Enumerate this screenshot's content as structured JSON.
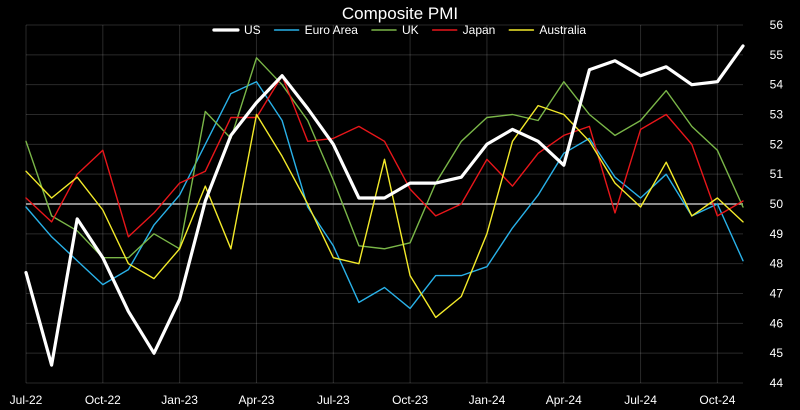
{
  "chart_data": {
    "type": "line",
    "title": "Composite PMI",
    "xlabel": "",
    "ylabel": "",
    "ylim": [
      44,
      56
    ],
    "yticks": [
      44,
      45,
      46,
      47,
      48,
      49,
      50,
      51,
      52,
      53,
      54,
      55,
      56
    ],
    "x_tick_labels": [
      {
        "label": "Jul-22",
        "index": 0
      },
      {
        "label": "Oct-22",
        "index": 3
      },
      {
        "label": "Jan-23",
        "index": 6
      },
      {
        "label": "Apr-23",
        "index": 9
      },
      {
        "label": "Jul-23",
        "index": 12
      },
      {
        "label": "Oct-23",
        "index": 15
      },
      {
        "label": "Jan-24",
        "index": 18
      },
      {
        "label": "Apr-24",
        "index": 21
      },
      {
        "label": "Jul-24",
        "index": 24
      },
      {
        "label": "Oct-24",
        "index": 27
      }
    ],
    "categories": [
      "Jul-22",
      "Aug-22",
      "Sep-22",
      "Oct-22",
      "Nov-22",
      "Dec-22",
      "Jan-23",
      "Feb-23",
      "Mar-23",
      "Apr-23",
      "May-23",
      "Jun-23",
      "Jul-23",
      "Aug-23",
      "Sep-23",
      "Oct-23",
      "Nov-23",
      "Dec-23",
      "Jan-24",
      "Feb-24",
      "Mar-24",
      "Apr-24",
      "May-24",
      "Jun-24",
      "Jul-24",
      "Aug-24",
      "Sep-24",
      "Oct-24",
      "Nov-24"
    ],
    "grid": true,
    "reference_line": 50,
    "legend_placement": "top-center",
    "series": [
      {
        "name": "US",
        "color": "#ffffff",
        "width": 3.2,
        "values": [
          47.7,
          44.6,
          49.5,
          48.2,
          46.4,
          45.0,
          46.8,
          50.1,
          52.3,
          53.4,
          54.3,
          53.2,
          52.0,
          50.2,
          50.2,
          50.7,
          50.7,
          50.9,
          52.0,
          52.5,
          52.1,
          51.3,
          54.5,
          54.8,
          54.3,
          54.6,
          54.0,
          54.1,
          55.3
        ]
      },
      {
        "name": "Euro Area",
        "color": "#29b1e8",
        "width": 1.4,
        "values": [
          49.9,
          48.9,
          48.1,
          47.3,
          47.8,
          49.3,
          50.3,
          52.0,
          53.7,
          54.1,
          52.8,
          49.9,
          48.6,
          46.7,
          47.2,
          46.5,
          47.6,
          47.6,
          47.9,
          49.2,
          50.3,
          51.7,
          52.2,
          50.9,
          50.2,
          51.0,
          49.6,
          50.0,
          48.1
        ]
      },
      {
        "name": "UK",
        "color": "#7ab648",
        "width": 1.4,
        "values": [
          52.1,
          49.6,
          49.1,
          48.2,
          48.2,
          49.0,
          48.5,
          53.1,
          52.2,
          54.9,
          54.0,
          52.8,
          50.8,
          48.6,
          48.5,
          48.7,
          50.7,
          52.1,
          52.9,
          53.0,
          52.8,
          54.1,
          53.0,
          52.3,
          52.8,
          53.8,
          52.6,
          51.8,
          49.9
        ]
      },
      {
        "name": "Japan",
        "color": "#e8161a",
        "width": 1.4,
        "values": [
          50.2,
          49.4,
          51.0,
          51.8,
          48.9,
          49.7,
          50.7,
          51.1,
          52.9,
          52.9,
          54.3,
          52.1,
          52.2,
          52.6,
          52.1,
          50.5,
          49.6,
          50.0,
          51.5,
          50.6,
          51.7,
          52.3,
          52.6,
          49.7,
          52.5,
          53.0,
          52.0,
          49.6,
          50.1
        ]
      },
      {
        "name": "Australia",
        "color": "#f3ea2a",
        "width": 1.4,
        "values": [
          51.1,
          50.2,
          50.9,
          49.8,
          48.0,
          47.5,
          48.5,
          50.6,
          48.5,
          53.0,
          51.6,
          50.0,
          48.2,
          48.0,
          51.5,
          47.6,
          46.2,
          46.9,
          49.0,
          52.1,
          53.3,
          53.0,
          52.1,
          50.7,
          49.9,
          51.4,
          49.6,
          50.2,
          49.4
        ]
      }
    ]
  }
}
